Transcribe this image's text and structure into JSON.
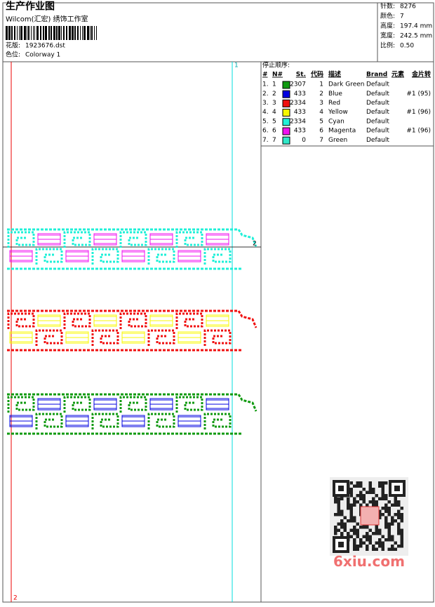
{
  "header": {
    "title": "生产作业图",
    "company": "Wilcom(汇宏) 绣饰工作室",
    "design_label": "花版:",
    "design": "1923676.dst",
    "colorway_label": "色位:",
    "colorway": "Colorway 1"
  },
  "info": [
    {
      "label": "针数:",
      "value": "8276"
    },
    {
      "label": "颜色:",
      "value": "7"
    },
    {
      "label": "高度:",
      "value": "197.4 mm"
    },
    {
      "label": "宽度:",
      "value": "242.5 mm"
    },
    {
      "label": "比例:",
      "value": "0.50"
    }
  ],
  "stop_sequence": {
    "title": "停止顺序:",
    "columns": [
      "#",
      "N#",
      "St.",
      "代码",
      "描述",
      "Brand",
      "元素",
      "金片转"
    ],
    "rows": [
      {
        "n": "1.",
        "nn": "1",
        "color": "#109a10",
        "st": "2307",
        "code": "1",
        "desc": "Dark Green",
        "brand": "Default"
      },
      {
        "n": "2.",
        "nn": "2",
        "color": "#0000e0",
        "st": "433",
        "code": "2",
        "desc": "Blue",
        "brand": "Default",
        "sequin": "#1 (95)"
      },
      {
        "n": "3.",
        "nn": "3",
        "color": "#f01010",
        "st": "2334",
        "code": "3",
        "desc": "Red",
        "brand": "Default"
      },
      {
        "n": "4.",
        "nn": "4",
        "color": "#f8f800",
        "st": "433",
        "code": "4",
        "desc": "Yellow",
        "brand": "Default",
        "sequin": "#1 (96)"
      },
      {
        "n": "5.",
        "nn": "5",
        "color": "#20f0d8",
        "st": "2334",
        "code": "5",
        "desc": "Cyan",
        "brand": "Default"
      },
      {
        "n": "6.",
        "nn": "6",
        "color": "#f010f0",
        "st": "433",
        "code": "6",
        "desc": "Magenta",
        "brand": "Default",
        "sequin": "#1 (96)"
      },
      {
        "n": "7.",
        "nn": "7",
        "color": "#30e8c8",
        "st": "0",
        "code": "7",
        "desc": "Green",
        "brand": "Default"
      }
    ]
  },
  "markers": [
    "1",
    "2",
    "2"
  ],
  "watermark": "6xiu.com"
}
